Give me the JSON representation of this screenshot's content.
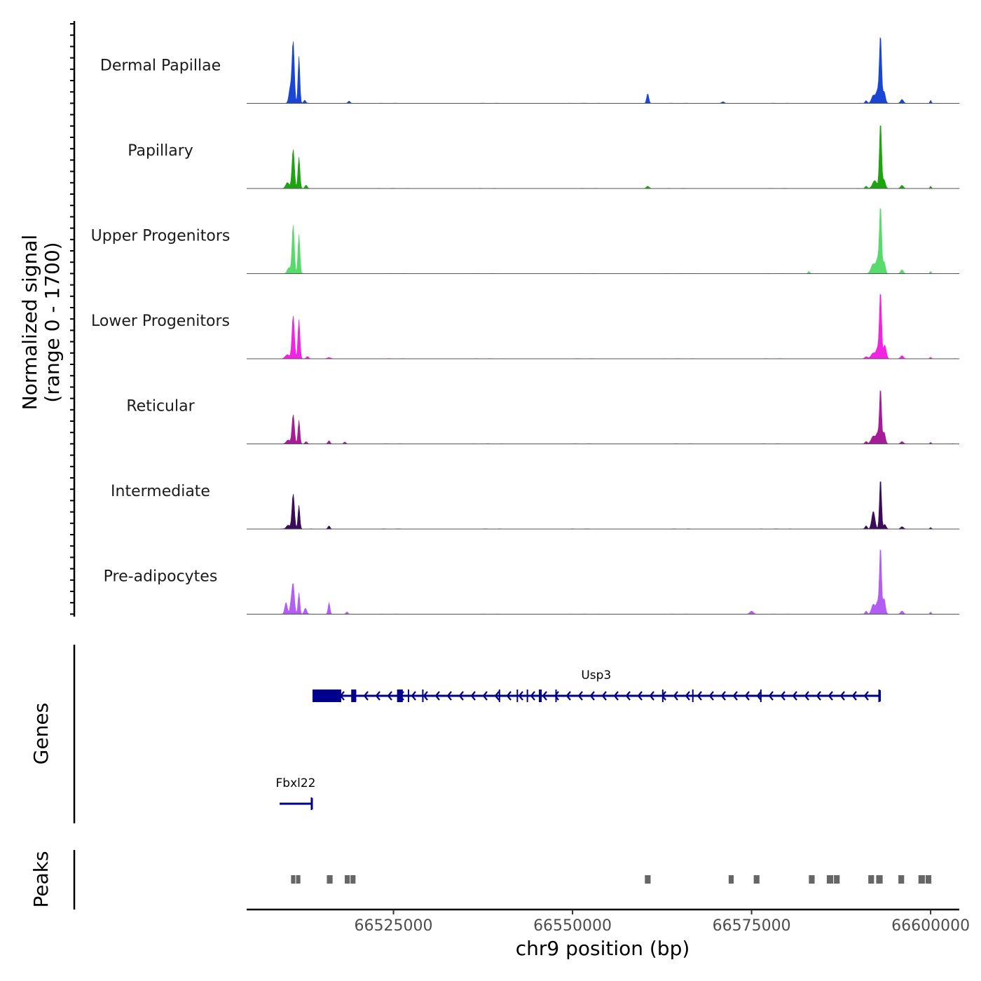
{
  "chart_data": {
    "type": "area",
    "title": "",
    "xlabel": "chr9 position (bp)",
    "ylabel": "Normalized signal",
    "ylabel_range": "(range 0 - 1700)",
    "ylim": [
      0,
      1700
    ],
    "xlim": [
      66504500,
      66604000
    ],
    "x_ticks": [
      66525000,
      66550000,
      66575000,
      66600000
    ],
    "x_tick_labels": [
      "66525000",
      "66550000",
      "66575000",
      "66600000"
    ],
    "tracks": [
      {
        "name": "Dermal Papillae",
        "color": "#1a46d6",
        "peaks": [
          [
            66510600,
            400,
            200
          ],
          [
            66511000,
            1550,
            160
          ],
          [
            66511800,
            1200,
            130
          ],
          [
            66512600,
            80,
            150
          ],
          [
            66518800,
            60,
            150
          ],
          [
            66560500,
            250,
            150
          ],
          [
            66571000,
            40,
            200
          ],
          [
            66591000,
            70,
            150
          ],
          [
            66592000,
            200,
            250
          ],
          [
            66592600,
            320,
            220
          ],
          [
            66593000,
            1700,
            150
          ],
          [
            66593500,
            300,
            180
          ],
          [
            66596000,
            100,
            200
          ],
          [
            66600000,
            80,
            100
          ]
        ]
      },
      {
        "name": "Papillary",
        "color": "#1fa312",
        "peaks": [
          [
            66510200,
            150,
            250
          ],
          [
            66511000,
            1000,
            170
          ],
          [
            66511800,
            800,
            140
          ],
          [
            66512800,
            80,
            160
          ],
          [
            66560500,
            60,
            200
          ],
          [
            66591000,
            60,
            150
          ],
          [
            66592200,
            200,
            300
          ],
          [
            66593000,
            1700,
            150
          ],
          [
            66593500,
            220,
            180
          ],
          [
            66596000,
            80,
            200
          ],
          [
            66600000,
            60,
            100
          ]
        ]
      },
      {
        "name": "Upper Progenitors",
        "color": "#58db6c",
        "peaks": [
          [
            66510400,
            150,
            220
          ],
          [
            66511000,
            1250,
            160
          ],
          [
            66511800,
            1000,
            140
          ],
          [
            66583000,
            60,
            120
          ],
          [
            66592000,
            250,
            300
          ],
          [
            66592600,
            350,
            200
          ],
          [
            66593000,
            1700,
            150
          ],
          [
            66593500,
            300,
            180
          ],
          [
            66596000,
            100,
            200
          ],
          [
            66600000,
            60,
            100
          ]
        ]
      },
      {
        "name": "Lower Progenitors",
        "color": "#f024e1",
        "peaks": [
          [
            66510200,
            100,
            300
          ],
          [
            66511000,
            1100,
            170
          ],
          [
            66511800,
            1000,
            140
          ],
          [
            66513000,
            60,
            160
          ],
          [
            66516000,
            30,
            250
          ],
          [
            66591000,
            50,
            200
          ],
          [
            66592000,
            150,
            300
          ],
          [
            66592600,
            250,
            200
          ],
          [
            66593000,
            1700,
            150
          ],
          [
            66593600,
            350,
            200
          ],
          [
            66596000,
            80,
            200
          ],
          [
            66600000,
            40,
            120
          ]
        ]
      },
      {
        "name": "Reticular",
        "color": "#a61c97",
        "peaks": [
          [
            66510300,
            100,
            250
          ],
          [
            66511000,
            750,
            170
          ],
          [
            66511800,
            600,
            130
          ],
          [
            66512800,
            60,
            150
          ],
          [
            66516000,
            80,
            150
          ],
          [
            66518200,
            50,
            150
          ],
          [
            66591000,
            60,
            150
          ],
          [
            66592000,
            200,
            300
          ],
          [
            66592600,
            250,
            200
          ],
          [
            66593000,
            1400,
            140
          ],
          [
            66593500,
            300,
            180
          ],
          [
            66596000,
            60,
            200
          ],
          [
            66600000,
            40,
            100
          ]
        ]
      },
      {
        "name": "Intermediate",
        "color": "#3b0c58",
        "peaks": [
          [
            66510300,
            100,
            250
          ],
          [
            66511000,
            900,
            170
          ],
          [
            66511800,
            600,
            130
          ],
          [
            66516000,
            80,
            150
          ],
          [
            66591000,
            80,
            150
          ],
          [
            66592000,
            450,
            220
          ],
          [
            66593000,
            1300,
            140
          ],
          [
            66593600,
            120,
            180
          ],
          [
            66596000,
            60,
            200
          ],
          [
            66600000,
            40,
            100
          ]
        ]
      },
      {
        "name": "Pre-adipocytes",
        "color": "#b25ef2",
        "peaks": [
          [
            66510000,
            300,
            180
          ],
          [
            66510700,
            250,
            160
          ],
          [
            66511000,
            750,
            170
          ],
          [
            66511800,
            550,
            130
          ],
          [
            66512700,
            150,
            180
          ],
          [
            66516000,
            300,
            130
          ],
          [
            66518500,
            60,
            150
          ],
          [
            66575000,
            80,
            250
          ],
          [
            66591000,
            80,
            150
          ],
          [
            66592000,
            250,
            250
          ],
          [
            66592600,
            300,
            200
          ],
          [
            66593000,
            1700,
            140
          ],
          [
            66593500,
            400,
            180
          ],
          [
            66596000,
            80,
            200
          ],
          [
            66600000,
            60,
            100
          ]
        ]
      }
    ],
    "genes": [
      {
        "name": "Usp3",
        "start": 66513700,
        "end": 66592900,
        "strand": "-",
        "color": "#00008b",
        "exons": [
          [
            66513700,
            66517700
          ],
          [
            66519100,
            66519800
          ],
          [
            66525500,
            66526300
          ],
          [
            66527000,
            66527100
          ],
          [
            66529000,
            66529200
          ],
          [
            66539700,
            66539800
          ],
          [
            66542200,
            66542300
          ],
          [
            66543600,
            66543700
          ],
          [
            66545300,
            66545700
          ],
          [
            66547600,
            66547700
          ],
          [
            66562500,
            66562600
          ],
          [
            66566700,
            66566800
          ],
          [
            66576200,
            66576300
          ],
          [
            66592700,
            66592900
          ]
        ]
      },
      {
        "name": "Fbxl22",
        "start": 66509100,
        "end": 66513600,
        "strand": "-",
        "color": "#00008b",
        "exons": [
          [
            66513450,
            66513600
          ]
        ]
      }
    ],
    "peaks_track": {
      "label": "Peaks",
      "color": "#666666",
      "regions": [
        [
          66510700,
          66511300
        ],
        [
          66511400,
          66512000
        ],
        [
          66515700,
          66516500
        ],
        [
          66518200,
          66518900
        ],
        [
          66519000,
          66519700
        ],
        [
          66560100,
          66560900
        ],
        [
          66571800,
          66572500
        ],
        [
          66575300,
          66576100
        ],
        [
          66583000,
          66583800
        ],
        [
          66585500,
          66586400
        ],
        [
          66586500,
          66587300
        ],
        [
          66591300,
          66592100
        ],
        [
          66592400,
          66593300
        ],
        [
          66595500,
          66596300
        ],
        [
          66598300,
          66599200
        ],
        [
          66599300,
          66600100
        ]
      ]
    },
    "genes_track_label": "Genes"
  }
}
